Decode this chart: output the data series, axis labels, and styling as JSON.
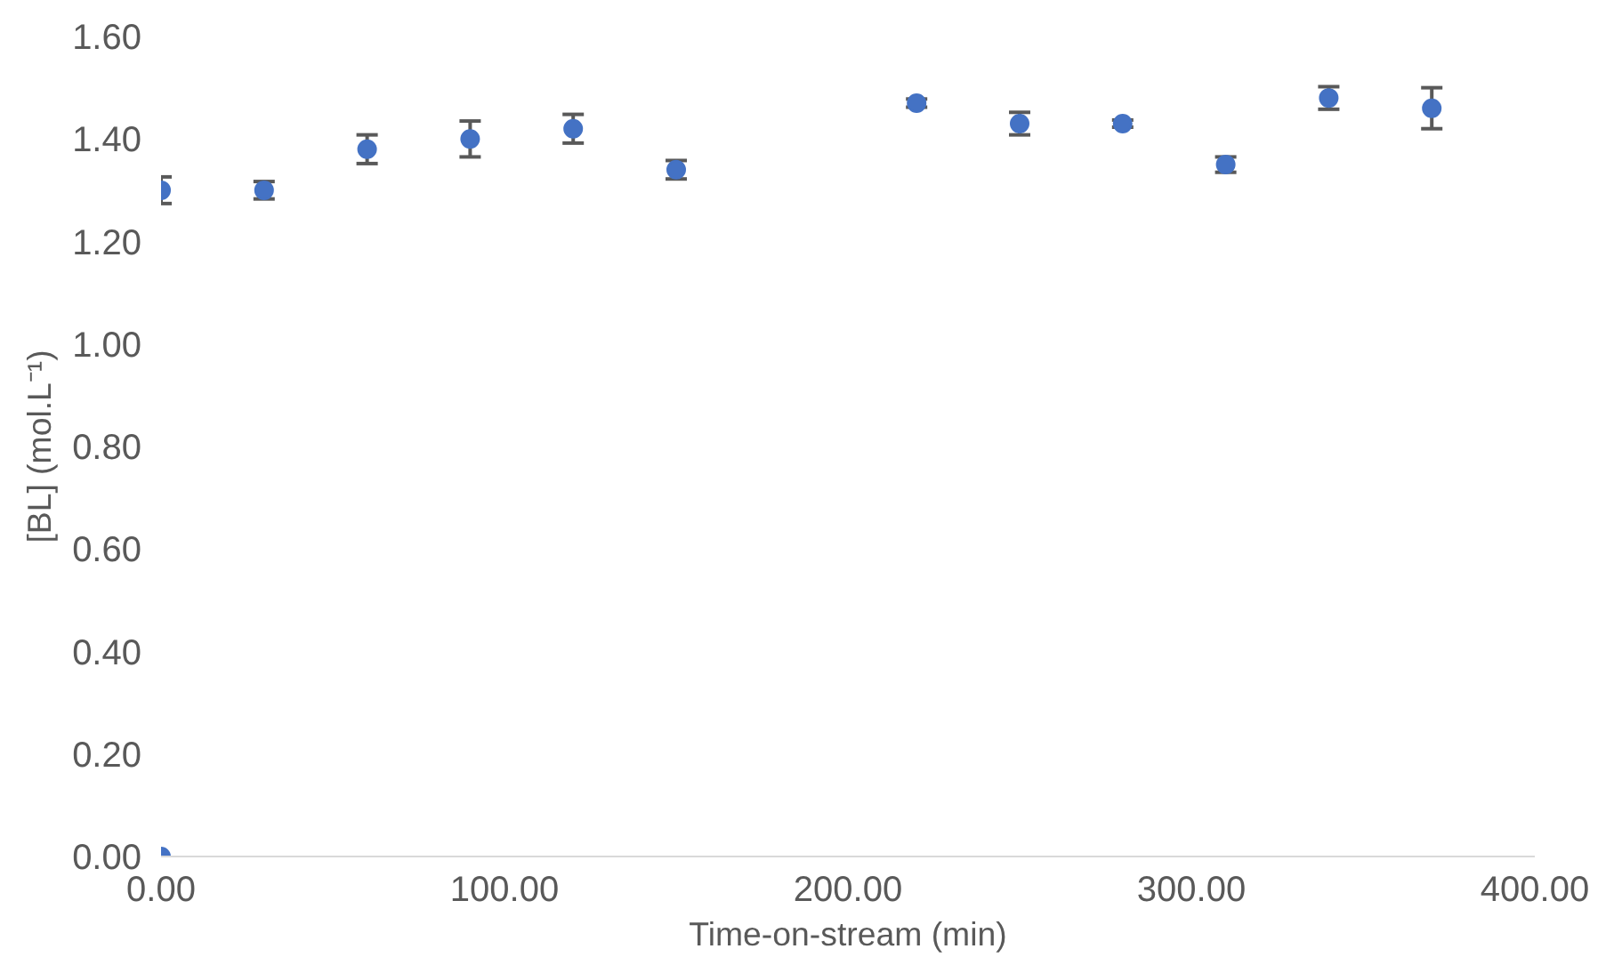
{
  "chart_data": {
    "type": "scatter",
    "xlabel": "Time-on-stream (min)",
    "ylabel": "[BL] (mol.L⁻¹)",
    "x": [
      0,
      0,
      30,
      60,
      90,
      120,
      150,
      220,
      250,
      280,
      310,
      340,
      370
    ],
    "series": [
      {
        "color": "#4472c4",
        "values": [
          0,
          1.3,
          1.3,
          1.38,
          1.4,
          1.42,
          1.34,
          1.47,
          1.43,
          1.43,
          1.35,
          1.48,
          1.46
        ],
        "errors": [
          null,
          0.026,
          0.017,
          0.028,
          0.035,
          0.028,
          0.018,
          0.008,
          0.022,
          0.007,
          0.015,
          0.022,
          0.04
        ]
      }
    ],
    "xlim": [
      0,
      400
    ],
    "xticks": [
      {
        "value": 0,
        "label": "0.00"
      },
      {
        "value": 100,
        "label": "100.00"
      },
      {
        "value": 200,
        "label": "200.00"
      },
      {
        "value": 300,
        "label": "300.00"
      },
      {
        "value": 400,
        "label": "400.00"
      }
    ],
    "ylim": [
      0,
      1.6
    ],
    "yticks": [
      {
        "value": 0,
        "label": "0.00"
      },
      {
        "value": 0.2,
        "label": "0.20"
      },
      {
        "value": 0.4,
        "label": "0.40"
      },
      {
        "value": 0.6,
        "label": "0.60"
      },
      {
        "value": 0.8,
        "label": "0.80"
      },
      {
        "value": 1.0,
        "label": "1.00"
      },
      {
        "value": 1.2,
        "label": "1.20"
      },
      {
        "value": 1.4,
        "label": "1.40"
      },
      {
        "value": 1.6,
        "label": "1.60"
      }
    ],
    "grid": false,
    "marker": "circle"
  }
}
